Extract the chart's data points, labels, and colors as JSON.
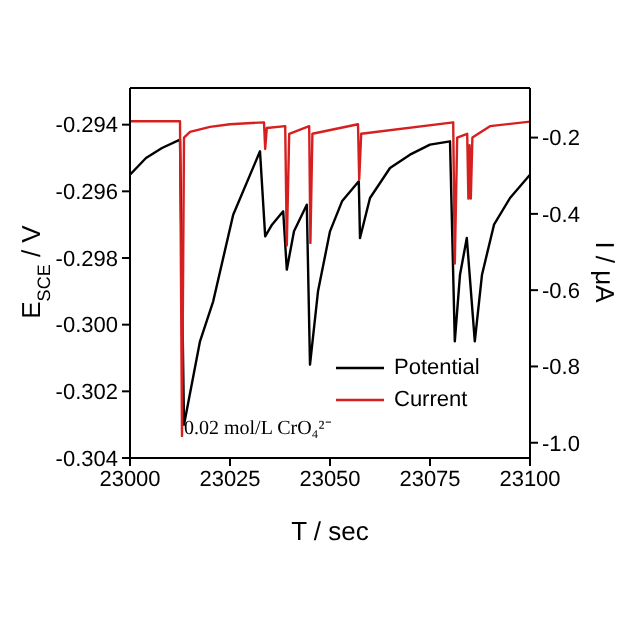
{
  "chart_data": {
    "type": "line",
    "xlabel": "T / sec",
    "ylabel": "E$_{SCE}$ / V",
    "y2label": "I / μA",
    "xlim": [
      23000,
      23100
    ],
    "xticks": [
      23000,
      23025,
      23050,
      23075,
      23100
    ],
    "ylim": [
      -0.304,
      -0.2929
    ],
    "yticks": [
      {
        "value": -0.304,
        "label": "-0.304"
      },
      {
        "value": -0.302,
        "label": "-0.302"
      },
      {
        "value": -0.3,
        "label": "-0.300"
      },
      {
        "value": -0.298,
        "label": "-0.298"
      },
      {
        "value": -0.296,
        "label": "-0.296"
      },
      {
        "value": -0.294,
        "label": "-0.294"
      }
    ],
    "y2lim": [
      -1.04,
      -0.07
    ],
    "y2ticks": [
      {
        "value": -1,
        "label": "-1.0"
      },
      -0.8,
      -0.6,
      -0.4,
      -0.2
    ],
    "legend": "bottom right",
    "grid": false,
    "marker": "none",
    "line_style": "solid",
    "annotations": [
      "0.02 mol/L CrO₄²⁻"
    ],
    "series": [
      {
        "name": "Potential",
        "color": "#000000",
        "x": [
          23000,
          23004,
          23008,
          23012.5,
          23013.5,
          23017.5,
          23020.8,
          23025.8,
          23032.5,
          23033.8,
          23035.5,
          23038.3,
          23039.2,
          23041,
          23044.2,
          23045,
          23047,
          23050,
          23053,
          23057.2,
          23057.5,
          23060,
          23065,
          23070,
          23075,
          23080,
          23081.2,
          23082.5,
          23084.2,
          23086.2,
          23088,
          23091,
          23095,
          23100
        ],
        "values": [
          -0.2955,
          -0.295,
          -0.2947,
          -0.29445,
          -0.303,
          -0.3005,
          -0.2993,
          -0.2967,
          -0.2948,
          -0.29735,
          -0.297,
          -0.2966,
          -0.29835,
          -0.2972,
          -0.2964,
          -0.3012,
          -0.299,
          -0.2972,
          -0.2963,
          -0.2957,
          -0.2974,
          -0.2962,
          -0.2953,
          -0.2949,
          -0.2946,
          -0.2945,
          -0.3005,
          -0.2985,
          -0.2974,
          -0.3005,
          -0.2985,
          -0.297,
          -0.2962,
          -0.2955
        ]
      },
      {
        "name": "Current",
        "color": "#d62020",
        "axis": "y2",
        "x": [
          23000,
          23012.5,
          23013,
          23013.5,
          23015,
          23020,
          23025,
          23033.5,
          23033.8,
          23034.2,
          23038.8,
          23039.2,
          23039.8,
          23044.8,
          23045.1,
          23045.6,
          23057,
          23057.3,
          23057.8,
          23080.8,
          23081.2,
          23081.8,
          23084.3,
          23084.6,
          23084.9,
          23085.2,
          23085.6,
          23090,
          23100
        ],
        "values": [
          -0.157,
          -0.157,
          -0.982,
          -0.2,
          -0.185,
          -0.172,
          -0.165,
          -0.16,
          -0.23,
          -0.175,
          -0.17,
          -0.483,
          -0.19,
          -0.17,
          -0.476,
          -0.19,
          -0.165,
          -0.31,
          -0.19,
          -0.16,
          -0.53,
          -0.2,
          -0.19,
          -0.36,
          -0.22,
          -0.36,
          -0.2,
          -0.17,
          -0.158
        ]
      }
    ]
  }
}
